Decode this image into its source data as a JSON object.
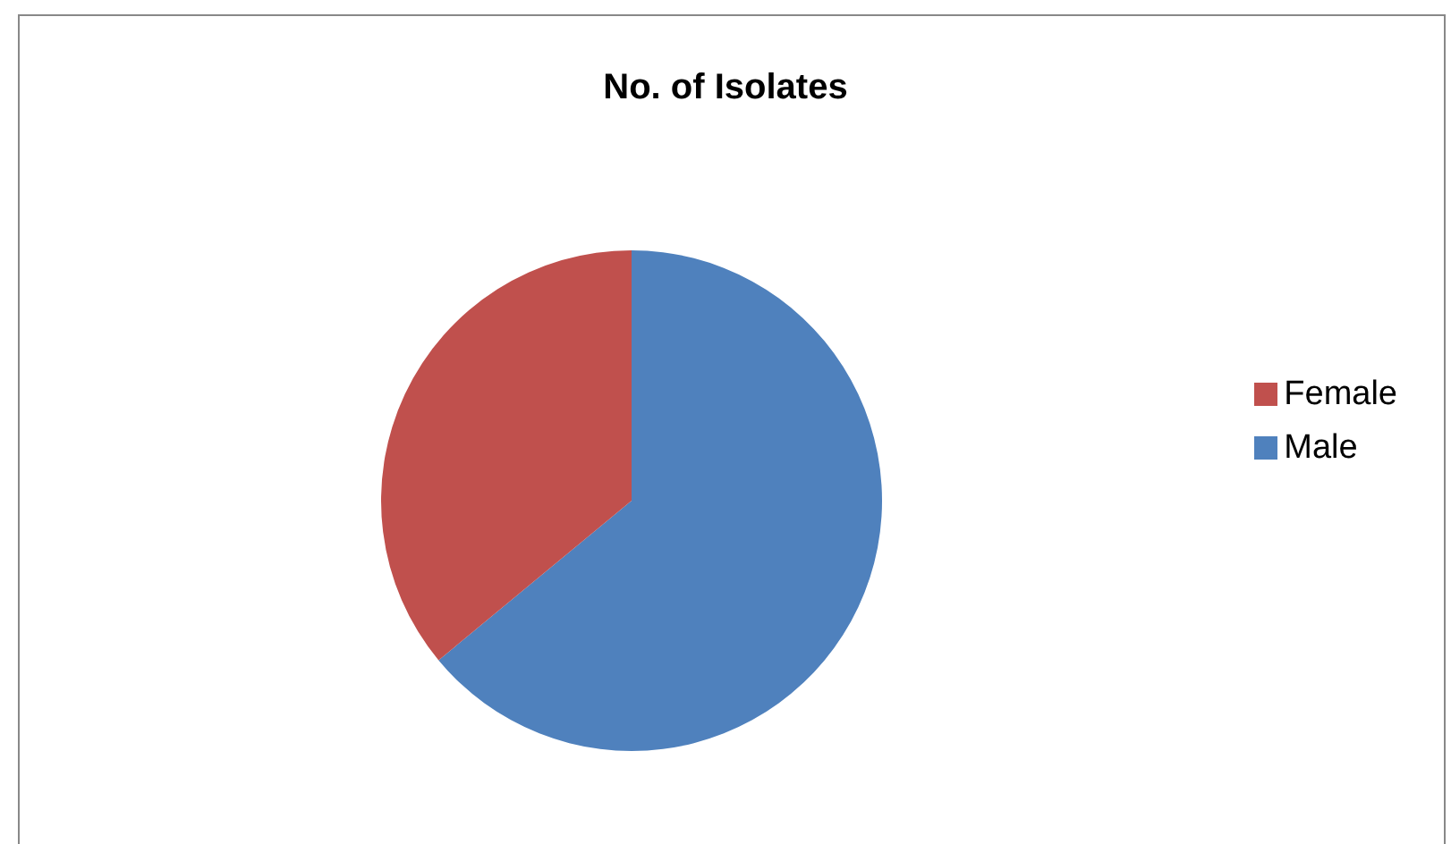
{
  "chart_data": {
    "type": "pie",
    "title": "No. of Isolates",
    "categories": [
      "Male",
      "Female"
    ],
    "values": [
      64,
      36
    ],
    "colors": [
      "#4f81bd",
      "#c0504d"
    ],
    "legend": "right"
  }
}
